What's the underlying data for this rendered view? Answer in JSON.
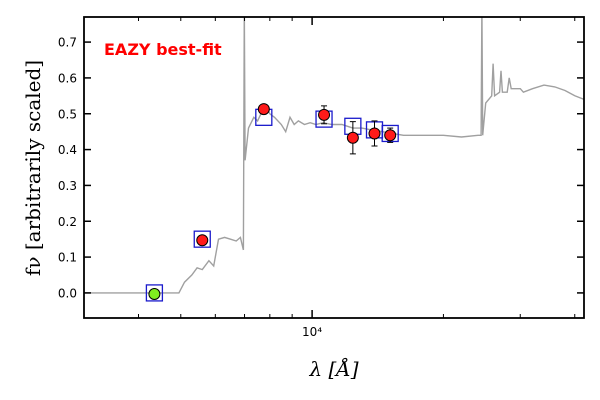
{
  "chart_data": {
    "type": "scatter",
    "title": "",
    "xlabel": "λ [Å]",
    "ylabel": "fν [arbitrarily scaled]",
    "xscale": "log",
    "xlim": [
      3000,
      42000
    ],
    "ylim": [
      -0.07,
      0.77
    ],
    "x_ticks": [
      {
        "value": 10000,
        "label": "10⁴"
      }
    ],
    "y_ticks": [
      0.0,
      0.1,
      0.2,
      0.3,
      0.4,
      0.5,
      0.6,
      0.7
    ],
    "grid": false,
    "annotation": {
      "text": "EAZY best-fit",
      "color": "#ff0000",
      "placement": "top-left"
    },
    "template_spectrum": {
      "color": "#a0a0a0",
      "points": [
        [
          3000,
          0.0
        ],
        [
          4950,
          0.0
        ],
        [
          5100,
          0.03
        ],
        [
          5300,
          0.05
        ],
        [
          5450,
          0.07
        ],
        [
          5600,
          0.065
        ],
        [
          5800,
          0.09
        ],
        [
          5950,
          0.075
        ],
        [
          6100,
          0.15
        ],
        [
          6300,
          0.155
        ],
        [
          6500,
          0.15
        ],
        [
          6700,
          0.145
        ],
        [
          6850,
          0.155
        ],
        [
          6960,
          0.12
        ],
        [
          6990,
          0.8
        ],
        [
          7020,
          0.37
        ],
        [
          7150,
          0.46
        ],
        [
          7350,
          0.49
        ],
        [
          7500,
          0.48
        ],
        [
          7700,
          0.51
        ],
        [
          7850,
          0.52
        ],
        [
          8000,
          0.5
        ],
        [
          8200,
          0.49
        ],
        [
          8500,
          0.47
        ],
        [
          8700,
          0.45
        ],
        [
          8900,
          0.49
        ],
        [
          9100,
          0.47
        ],
        [
          9300,
          0.48
        ],
        [
          9600,
          0.47
        ],
        [
          9900,
          0.475
        ],
        [
          10200,
          0.47
        ],
        [
          10600,
          0.475
        ],
        [
          11100,
          0.47
        ],
        [
          11700,
          0.47
        ],
        [
          12400,
          0.46
        ],
        [
          13000,
          0.46
        ],
        [
          13700,
          0.455
        ],
        [
          14500,
          0.45
        ],
        [
          15300,
          0.445
        ],
        [
          16200,
          0.44
        ],
        [
          17300,
          0.44
        ],
        [
          18500,
          0.44
        ],
        [
          20000,
          0.44
        ],
        [
          22000,
          0.435
        ],
        [
          24000,
          0.44
        ],
        [
          24400,
          0.44
        ],
        [
          24500,
          0.8
        ],
        [
          24600,
          0.44
        ],
        [
          25000,
          0.53
        ],
        [
          25800,
          0.55
        ],
        [
          26000,
          0.64
        ],
        [
          26200,
          0.55
        ],
        [
          26900,
          0.56
        ],
        [
          27100,
          0.62
        ],
        [
          27300,
          0.56
        ],
        [
          28000,
          0.56
        ],
        [
          28300,
          0.6
        ],
        [
          28600,
          0.57
        ],
        [
          30000,
          0.57
        ],
        [
          30500,
          0.56
        ],
        [
          32000,
          0.57
        ],
        [
          34000,
          0.58
        ],
        [
          36000,
          0.575
        ],
        [
          38000,
          0.565
        ],
        [
          40000,
          0.55
        ],
        [
          42000,
          0.54
        ]
      ]
    },
    "series": [
      {
        "name": "observed",
        "marker": "circle",
        "fill": "#ff1a1a",
        "points": [
          {
            "x": 7750,
            "y": 0.513,
            "yerr": 0.012
          },
          {
            "x": 10650,
            "y": 0.497,
            "yerr": 0.025
          },
          {
            "x": 12400,
            "y": 0.433,
            "yerr": 0.045
          },
          {
            "x": 13900,
            "y": 0.445,
            "yerr": 0.035
          },
          {
            "x": 15100,
            "y": 0.44,
            "yerr": 0.02
          },
          {
            "x": 5600,
            "y": 0.147,
            "yerr": 0.0
          }
        ]
      },
      {
        "name": "observed-low",
        "marker": "circle",
        "fill": "#80ee20",
        "points": [
          {
            "x": 4350,
            "y": -0.003,
            "yerr": 0.0
          }
        ]
      },
      {
        "name": "template-photometry",
        "marker": "square",
        "stroke": "#1a1acc",
        "points": [
          {
            "x": 4350,
            "y": 0.0
          },
          {
            "x": 5600,
            "y": 0.15
          },
          {
            "x": 7750,
            "y": 0.49
          },
          {
            "x": 10650,
            "y": 0.485
          },
          {
            "x": 12400,
            "y": 0.465
          },
          {
            "x": 13900,
            "y": 0.455
          },
          {
            "x": 15100,
            "y": 0.445
          }
        ]
      }
    ]
  }
}
